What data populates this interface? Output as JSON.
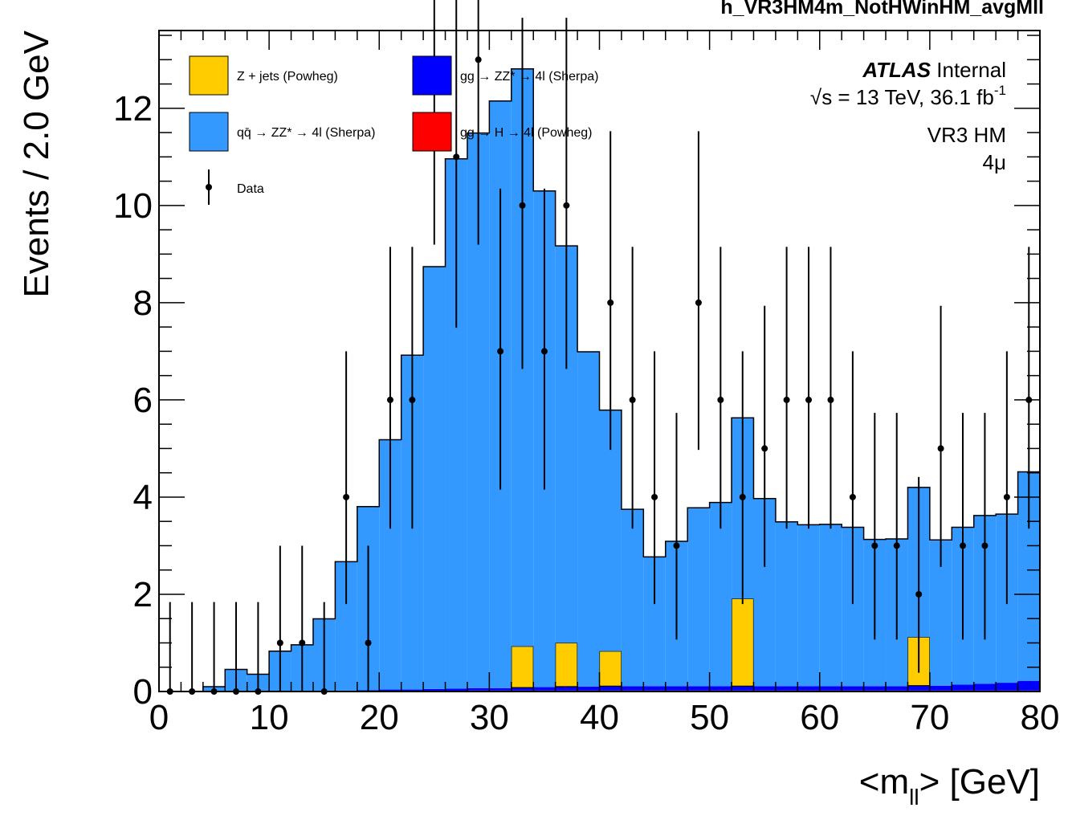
{
  "chart_data": {
    "type": "bar",
    "stacked": true,
    "histogram_name": "h_VR3HM4m_NotHWinHM_avgMll",
    "xlabel_main": "<m",
    "xlabel_sub": "ll",
    "xlabel_tail": "> [GeV]",
    "ylabel": "Events / 2.0 GeV",
    "xlim": [
      0,
      80
    ],
    "ylim": [
      0,
      13.6
    ],
    "bin_width": 2,
    "x_ticks": [
      "0",
      "10",
      "20",
      "30",
      "40",
      "50",
      "60",
      "70",
      "80"
    ],
    "y_ticks": [
      "0",
      "2",
      "4",
      "6",
      "8",
      "10",
      "12"
    ],
    "atlas": {
      "label_bold": "ATLAS",
      "label_rest": " Internal",
      "energy_line": "√s = 13 TeV, 36.1 fb",
      "lumi_superscript": "-1",
      "region": "VR3 HM",
      "channel": "4μ"
    },
    "legend": [
      {
        "label": "Z + jets (Powheg)",
        "color": "#ffcc00",
        "kind": "box"
      },
      {
        "label": "gg → ZZ* → 4l (Sherpa)",
        "color": "#0000ff",
        "kind": "box"
      },
      {
        "label": "qq̄ → ZZ* → 4l (Sherpa)",
        "color": "#3399ff",
        "kind": "box"
      },
      {
        "label": "gg → H → 4l (Powheg)",
        "color": "#ff0000",
        "kind": "box"
      },
      {
        "label": "Data",
        "color": "#000000",
        "kind": "marker"
      }
    ],
    "series": [
      {
        "name": "gg → H → 4l (Powheg)",
        "color": "#ff0000",
        "values": [
          0,
          0,
          0,
          0,
          0,
          0,
          0,
          0.005,
          0.005,
          0.005,
          0.01,
          0.01,
          0.012,
          0.015,
          0.02,
          0.02,
          0.02,
          0.02,
          0.02,
          0.02,
          0.02,
          0.02,
          0.02,
          0.02,
          0.02,
          0.02,
          0.02,
          0.02,
          0.02,
          0.02,
          0.02,
          0.02,
          0.02,
          0.02,
          0.02,
          0.02,
          0.02,
          0.02,
          0.02,
          0.02
        ]
      },
      {
        "name": "gg → ZZ* → 4l (Sherpa)",
        "color": "#0000ff",
        "values": [
          0,
          0,
          0,
          0.005,
          0.005,
          0.01,
          0.01,
          0.01,
          0.015,
          0.02,
          0.03,
          0.03,
          0.04,
          0.045,
          0.05,
          0.05,
          0.06,
          0.07,
          0.08,
          0.08,
          0.09,
          0.09,
          0.09,
          0.09,
          0.09,
          0.09,
          0.09,
          0.09,
          0.09,
          0.09,
          0.09,
          0.09,
          0.09,
          0.09,
          0.1,
          0.1,
          0.12,
          0.14,
          0.16,
          0.2
        ]
      },
      {
        "name": "Z + jets (Powheg)",
        "color": "#ffcc00",
        "values": [
          0,
          0,
          0,
          0,
          0,
          0,
          0,
          0,
          0,
          0,
          0,
          0,
          0,
          0,
          0,
          0,
          0.85,
          0,
          0.9,
          0,
          0.72,
          0,
          0,
          0,
          0,
          0,
          1.8,
          0,
          0,
          0,
          0,
          0,
          0,
          0,
          1,
          0,
          0,
          0,
          0,
          0
        ]
      },
      {
        "name": "qq̄ → ZZ* → 4l (Sherpa)",
        "color": "#3399ff",
        "values": [
          0,
          0,
          0.1,
          0.45,
          0.35,
          0.82,
          0.95,
          1.48,
          2.65,
          3.78,
          5.14,
          6.88,
          8.69,
          10.9,
          11.42,
          12.08,
          11.88,
          10.21,
          8.17,
          6.89,
          4.96,
          3.64,
          2.66,
          2.98,
          3.67,
          3.78,
          3.72,
          3.86,
          3.38,
          3.32,
          3.33,
          3.27,
          3.02,
          3.03,
          3.08,
          3.0,
          3.24,
          3.46,
          3.47,
          4.3
        ]
      }
    ],
    "data_points": {
      "name": "Data",
      "x": [
        1,
        3,
        5,
        7,
        9,
        11,
        13,
        15,
        17,
        19,
        21,
        23,
        25,
        27,
        29,
        31,
        33,
        35,
        37,
        39,
        41,
        43,
        45,
        47,
        49,
        51,
        53,
        55,
        57,
        59,
        61,
        63,
        65,
        67,
        69,
        71,
        73,
        75,
        77,
        79
      ],
      "y": [
        0,
        0,
        0,
        0,
        0,
        1,
        1,
        0,
        4,
        1,
        6,
        6,
        13,
        11,
        13,
        7,
        10,
        7,
        10,
        null,
        8,
        6,
        4,
        3,
        8,
        6,
        4,
        5,
        6,
        6,
        6,
        4,
        3,
        3,
        2,
        5,
        3,
        3,
        4,
        6
      ]
    }
  }
}
